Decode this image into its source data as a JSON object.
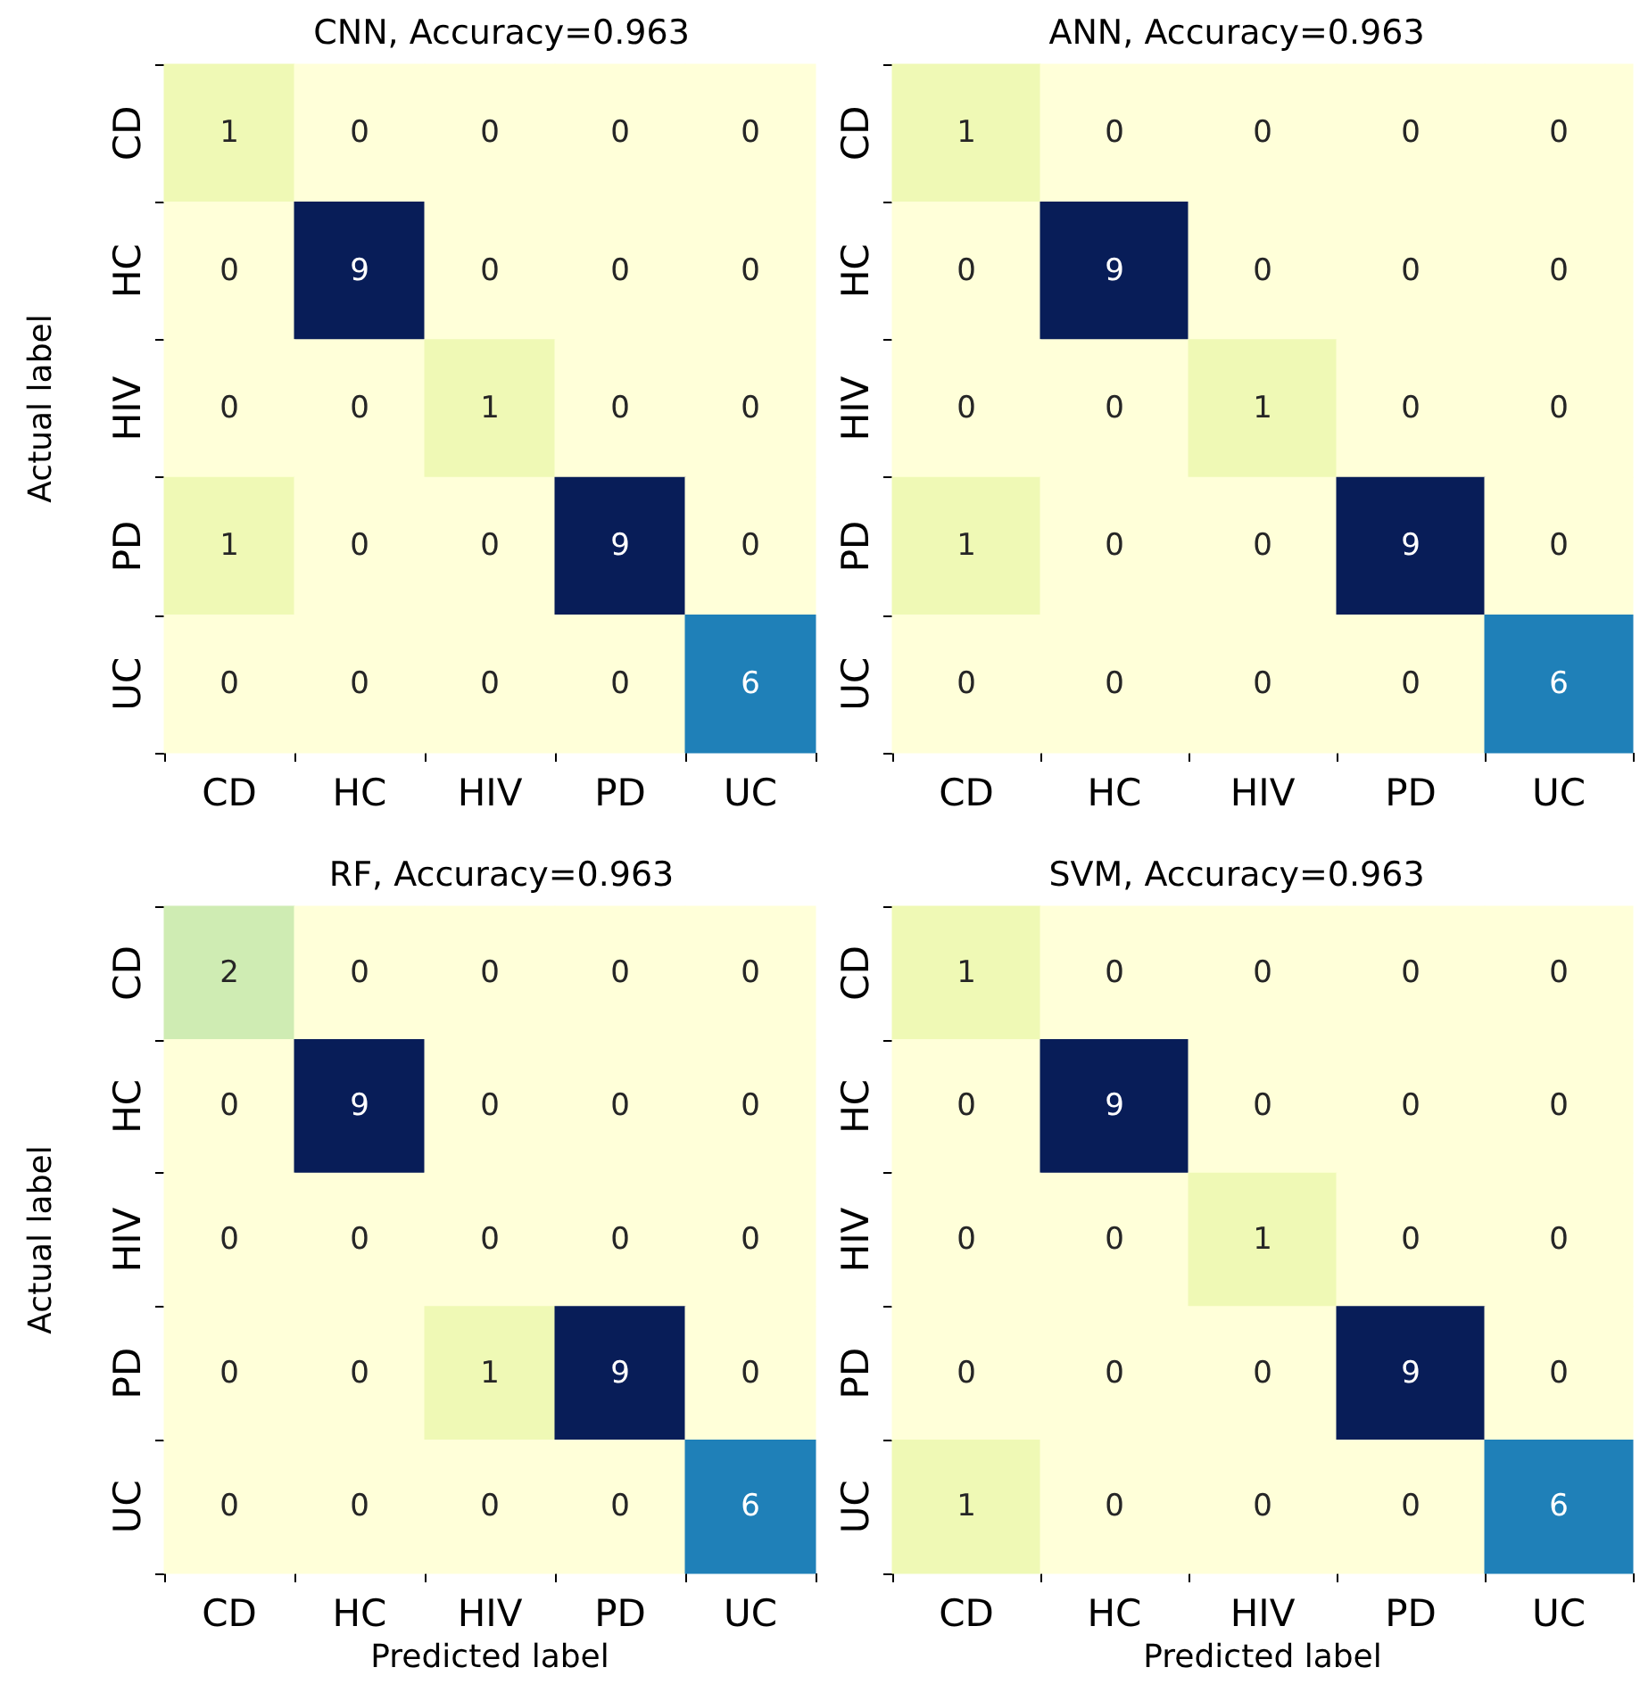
{
  "chart_data": [
    {
      "type": "heatmap",
      "title": "CNN, Accuracy=0.963",
      "ylabel": "Actual label",
      "categories": [
        "CD",
        "HC",
        "HIV",
        "PD",
        "UC"
      ],
      "y_categories": [
        "CD",
        "HC",
        "HIV",
        "PD",
        "UC"
      ],
      "data_labels": true,
      "cells": [
        [
          1,
          0,
          0,
          0,
          0
        ],
        [
          0,
          9,
          0,
          0,
          0
        ],
        [
          0,
          0,
          1,
          0,
          0
        ],
        [
          1,
          0,
          0,
          9,
          0
        ],
        [
          0,
          0,
          0,
          0,
          6
        ]
      ]
    },
    {
      "type": "heatmap",
      "title": "ANN, Accuracy=0.963",
      "categories": [
        "CD",
        "HC",
        "HIV",
        "PD",
        "UC"
      ],
      "y_categories": [
        "CD",
        "HC",
        "HIV",
        "PD",
        "UC"
      ],
      "data_labels": true,
      "cells": [
        [
          1,
          0,
          0,
          0,
          0
        ],
        [
          0,
          9,
          0,
          0,
          0
        ],
        [
          0,
          0,
          1,
          0,
          0
        ],
        [
          1,
          0,
          0,
          9,
          0
        ],
        [
          0,
          0,
          0,
          0,
          6
        ]
      ]
    },
    {
      "type": "heatmap",
      "title": "RF, Accuracy=0.963",
      "xlabel": "Predicted label",
      "ylabel": "Actual label",
      "categories": [
        "CD",
        "HC",
        "HIV",
        "PD",
        "UC"
      ],
      "y_categories": [
        "CD",
        "HC",
        "HIV",
        "PD",
        "UC"
      ],
      "data_labels": true,
      "cells": [
        [
          2,
          0,
          0,
          0,
          0
        ],
        [
          0,
          9,
          0,
          0,
          0
        ],
        [
          0,
          0,
          0,
          0,
          0
        ],
        [
          0,
          0,
          1,
          9,
          0
        ],
        [
          0,
          0,
          0,
          0,
          6
        ]
      ]
    },
    {
      "type": "heatmap",
      "title": "SVM, Accuracy=0.963",
      "xlabel": "Predicted label",
      "categories": [
        "CD",
        "HC",
        "HIV",
        "PD",
        "UC"
      ],
      "y_categories": [
        "CD",
        "HC",
        "HIV",
        "PD",
        "UC"
      ],
      "data_labels": true,
      "cells": [
        [
          1,
          0,
          0,
          0,
          0
        ],
        [
          0,
          9,
          0,
          0,
          0
        ],
        [
          0,
          0,
          1,
          0,
          0
        ],
        [
          0,
          0,
          0,
          9,
          0
        ],
        [
          1,
          0,
          0,
          0,
          6
        ]
      ]
    }
  ]
}
